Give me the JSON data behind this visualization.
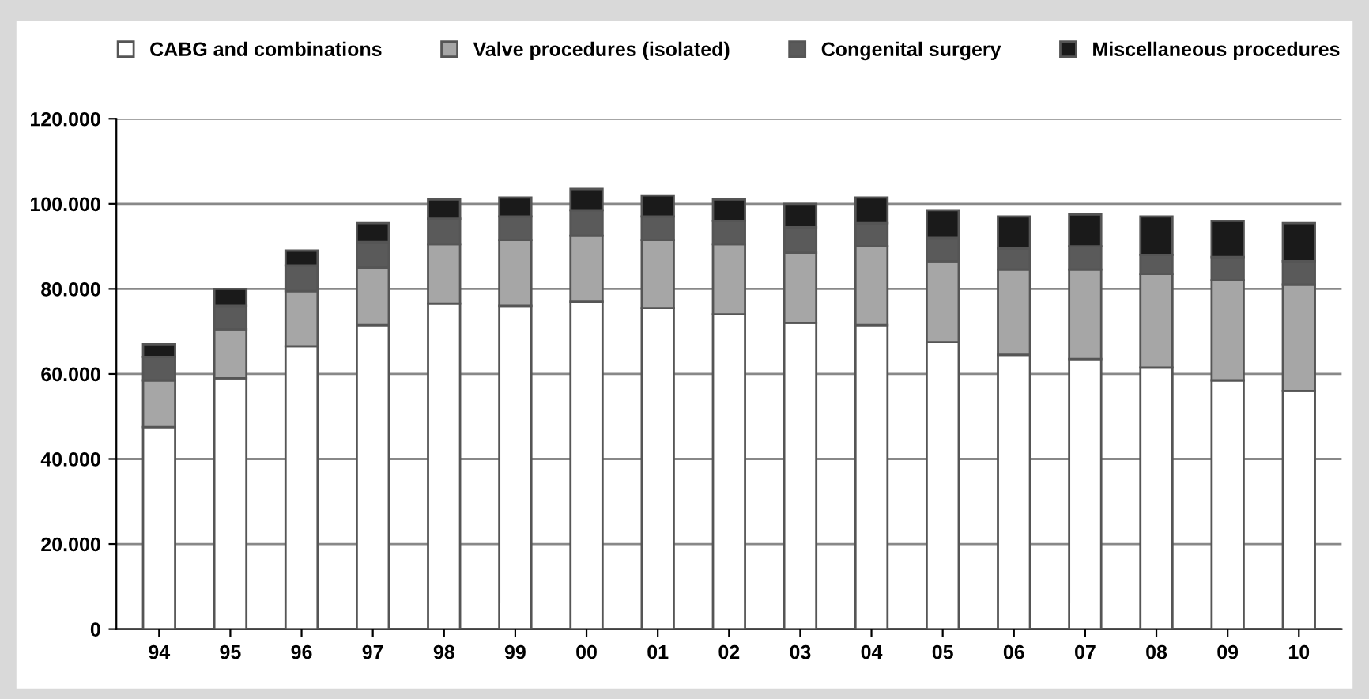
{
  "chart_data": {
    "type": "bar",
    "stacked": true,
    "categories": [
      "94",
      "95",
      "96",
      "97",
      "98",
      "99",
      "00",
      "01",
      "02",
      "03",
      "04",
      "05",
      "06",
      "07",
      "08",
      "09",
      "10"
    ],
    "series": [
      {
        "name": "CABG and combinations",
        "color": "#ffffff",
        "values": [
          47500,
          59000,
          66500,
          71500,
          76500,
          76000,
          77000,
          75500,
          74000,
          72000,
          71500,
          67500,
          64500,
          63500,
          61500,
          58500,
          56000
        ]
      },
      {
        "name": "Valve procedures (isolated)",
        "color": "#a6a6a6",
        "values": [
          11000,
          11500,
          13000,
          13500,
          14000,
          15500,
          15500,
          16000,
          16500,
          16500,
          18500,
          19000,
          20000,
          21000,
          22000,
          23500,
          25000
        ]
      },
      {
        "name": "Congenital surgery",
        "color": "#5a5a5a",
        "values": [
          5500,
          5500,
          6000,
          6000,
          6000,
          5500,
          6000,
          5500,
          5500,
          6000,
          5500,
          5500,
          5000,
          5500,
          4500,
          5500,
          5500
        ]
      },
      {
        "name": "Miscellaneous procedures",
        "color": "#1a1a1a",
        "values": [
          3000,
          4000,
          3500,
          4500,
          4500,
          4500,
          5000,
          5000,
          5000,
          5500,
          6000,
          6500,
          7500,
          7500,
          9000,
          8500,
          9000
        ]
      }
    ],
    "ylim": [
      0,
      120000
    ],
    "yticks": [
      0,
      {
        "value": 20000,
        "label": "20.000"
      },
      {
        "value": 40000,
        "label": "40.000"
      },
      {
        "value": 60000,
        "label": "60.000"
      },
      {
        "value": 80000,
        "label": "80.000"
      },
      {
        "value": 100000,
        "label": "100.000"
      },
      {
        "value": 120000,
        "label": "120.000"
      }
    ],
    "grid": "y",
    "legend": "top"
  }
}
